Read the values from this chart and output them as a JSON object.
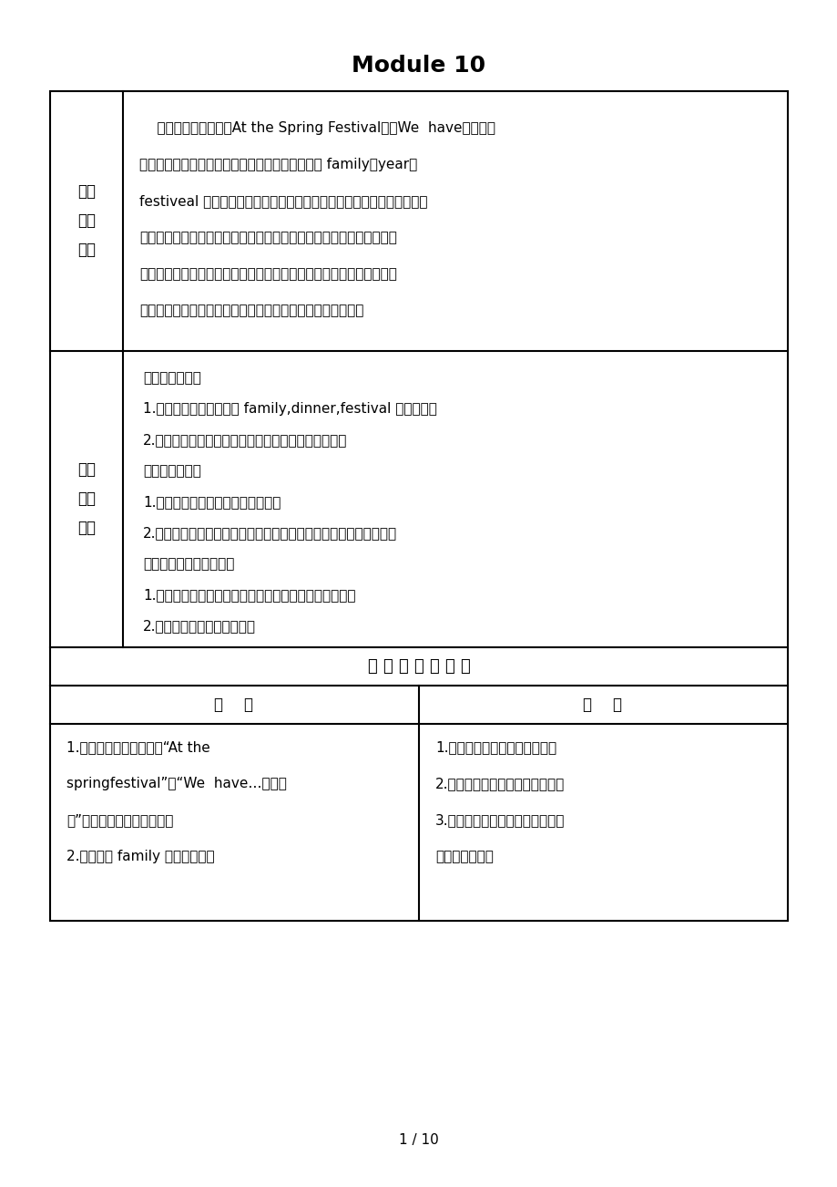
{
  "title": "Module 10",
  "background_color": "#ffffff",
  "border_color": "#000000",
  "text_color": "#000000",
  "section1_label": "单元\n教材\n分析",
  "section1_content": [
    "    本模块的话题便围绕At the Spring Festival，以We  have～这个句",
    "型为依托，较为集中地进行了一些名词的教学，如 family、year、",
    "festiveal 等。这一模块两个单元分别从我们的节日出发，通过创设学生",
    "熟悉的语言情景，用这些名词来频繁地描述我们熟悉的节日，以达到语",
    "言习得的目的。我觉得我们的教学思路应循着教材来源于生活，又回归",
    "到生活的理念，借助教材学习表达，创设实际情景习得语言。"
  ],
  "section2_label": "单元\n教学\n目标",
  "section2_content": [
    "一、知识与技能",
    "1.能正确地听说读写单词 family,dinner,festival 等新单词。",
    "2.学会本单元的常用口语，正确运用关于节日的句型。",
    "二、过程与方法",
    "1.引导学生在课文情景中感知语言；",
    "2.培养学生听、说和运用英语的能力；培养学生与他人合作的能力。",
    "三、情感、态度、价值观",
    "1.通过学习让学生感受赞赏别人带给自己和他人的快乐。",
    "2.激发学生学习英语的兴趣。"
  ],
  "section3_title": "单 元 训 练 重 难 点",
  "section3_col1_header": "重    点",
  "section3_col2_header": "难    点",
  "section3_col1_content": [
    "1.能够正确运用新的句型“At the",
    "springfestival”和“We  have…这个句",
    "型”来谈论关于节日的特点。",
    "2.掌握单词 family 等月份名词。"
  ],
  "section3_col2_content": [
    "1.以面向全体为基准进行教学。",
    "2.引导学生在课文情景中感知语言",
    "3.创设实际情景，让学生在角色扑",
    "演中运用语言。"
  ],
  "page_number": "1 / 10"
}
